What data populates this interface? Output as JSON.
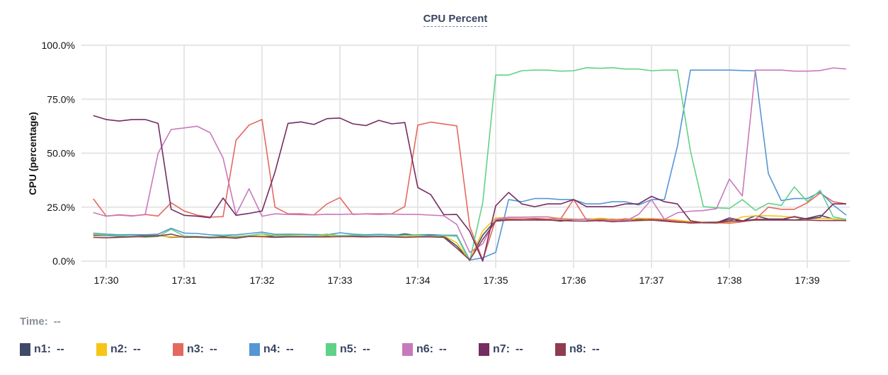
{
  "chart_data": {
    "type": "line",
    "title": "CPU Percent",
    "ylabel": "CPU (percentage)",
    "xlabel": "",
    "ylim": [
      0,
      100
    ],
    "yticks": [
      "0.0%",
      "25.0%",
      "50.0%",
      "75.0%",
      "100.0%"
    ],
    "ytick_values": [
      0,
      25,
      50,
      75,
      100
    ],
    "xticks": [
      "17:30",
      "17:31",
      "17:32",
      "17:33",
      "17:34",
      "17:35",
      "17:36",
      "17:37",
      "17:38",
      "17:39"
    ],
    "grid": true,
    "legend": "bottom",
    "x": [
      "17:29:50",
      "17:30:00",
      "17:30:10",
      "17:30:20",
      "17:30:30",
      "17:30:40",
      "17:30:50",
      "17:31:00",
      "17:31:10",
      "17:31:20",
      "17:31:30",
      "17:31:40",
      "17:31:50",
      "17:32:00",
      "17:32:10",
      "17:32:20",
      "17:32:30",
      "17:32:40",
      "17:32:50",
      "17:33:00",
      "17:33:10",
      "17:33:20",
      "17:33:30",
      "17:33:40",
      "17:33:50",
      "17:34:00",
      "17:34:10",
      "17:34:20",
      "17:34:30",
      "17:34:40",
      "17:34:50",
      "17:35:00",
      "17:35:10",
      "17:35:20",
      "17:35:30",
      "17:35:40",
      "17:35:50",
      "17:36:00",
      "17:36:10",
      "17:36:20",
      "17:36:30",
      "17:36:40",
      "17:36:50",
      "17:37:00",
      "17:37:10",
      "17:37:20",
      "17:37:30",
      "17:37:40",
      "17:37:50",
      "17:38:00",
      "17:38:10",
      "17:38:20",
      "17:38:30",
      "17:38:40",
      "17:38:50",
      "17:39:00",
      "17:39:10",
      "17:39:20",
      "17:39:30"
    ],
    "series": [
      {
        "name": "n1",
        "color": "#3f4a68",
        "values": [
          12,
          11.8,
          11.5,
          11.6,
          11.8,
          12,
          11,
          11.3,
          11,
          11,
          11.5,
          11.2,
          11.8,
          11.4,
          11.6,
          11.6,
          11.5,
          11.7,
          11.6,
          11.8,
          11.5,
          11.6,
          11.6,
          11.7,
          12.6,
          11.8,
          11.9,
          11.5,
          7,
          0.5,
          12,
          19,
          19.3,
          19.5,
          19.5,
          19.2,
          18.5,
          19.3,
          19.5,
          19.6,
          18.8,
          19.2,
          19.4,
          19.5,
          19,
          18.5,
          17.8,
          18,
          18,
          19.2,
          18.5,
          21,
          19.5,
          19.5,
          19,
          19.8,
          21.2,
          19.5,
          19.3
        ]
      },
      {
        "name": "n2",
        "color": "#f5c518",
        "values": [
          12.5,
          12,
          11.8,
          11.5,
          11.5,
          11.8,
          11.2,
          11.5,
          11,
          11.2,
          10.8,
          11.5,
          11.8,
          11.6,
          12.2,
          12,
          11.8,
          11.6,
          11.9,
          11.5,
          12,
          11.8,
          11.6,
          11.8,
          11.2,
          11.6,
          11.5,
          11.8,
          8.5,
          0.3,
          14,
          20,
          20.3,
          20.3,
          20.5,
          20.5,
          19.8,
          19.5,
          19.3,
          19.8,
          19.5,
          19.3,
          19.8,
          19.7,
          19.4,
          19,
          18.3,
          18,
          17.5,
          18,
          20.5,
          21,
          21,
          20.8,
          20.3,
          19.5,
          19.8,
          19.6,
          19.3
        ]
      },
      {
        "name": "n3",
        "color": "#e5685f",
        "values": [
          28.9,
          20.9,
          21.3,
          20.9,
          21.6,
          20.9,
          27,
          23.2,
          21.3,
          20.4,
          20.6,
          56,
          63,
          65.6,
          25,
          21.9,
          21.9,
          21.4,
          26.5,
          29.4,
          21.6,
          21.9,
          21.9,
          21.9,
          25.3,
          63,
          64.4,
          63.5,
          62.7,
          16,
          0.5,
          19.3,
          19.6,
          19.5,
          19.8,
          19.5,
          19.5,
          28.6,
          19,
          19.2,
          18.8,
          19.6,
          18.8,
          19.5,
          19.2,
          18.5,
          17.5,
          17.8,
          17.8,
          17.5,
          18.2,
          19.3,
          25,
          24,
          24,
          27,
          31.5,
          27.5,
          26.5
        ]
      },
      {
        "name": "n4",
        "color": "#5596d4",
        "values": [
          13,
          12.5,
          12.2,
          12.3,
          12.2,
          12.5,
          15.2,
          13,
          12.8,
          12.2,
          12,
          12.2,
          12.8,
          13.4,
          12.4,
          12.5,
          12.4,
          12.3,
          12.2,
          13.1,
          12.5,
          12.2,
          12.4,
          12.2,
          11.9,
          12.2,
          12.3,
          12,
          12,
          0.5,
          1.5,
          4,
          28.5,
          27.5,
          29,
          29,
          28.5,
          28.5,
          26.5,
          26.5,
          27.5,
          27.5,
          26,
          28.5,
          28.5,
          53.3,
          88.5,
          88.5,
          88.5,
          88.5,
          88.3,
          88.2,
          40.6,
          28,
          29,
          29,
          32,
          26,
          21.3
        ]
      },
      {
        "name": "n5",
        "color": "#60d287",
        "values": [
          12.8,
          12,
          11.7,
          11.6,
          11,
          11.4,
          14.8,
          11.6,
          11.4,
          11.2,
          11.8,
          11.3,
          11.8,
          12.7,
          11.6,
          11.8,
          11.5,
          11.7,
          12.5,
          11.8,
          12,
          11.8,
          11.7,
          11.6,
          11.9,
          12.1,
          11.3,
          11.8,
          11.5,
          0,
          27,
          86.2,
          86.2,
          88.2,
          88.5,
          88.5,
          88,
          88.2,
          89.6,
          89.3,
          89.6,
          89,
          89,
          88.2,
          88.5,
          88.5,
          51,
          25.2,
          24.7,
          24.4,
          28.5,
          23.5,
          26.8,
          25.8,
          34.4,
          27.6,
          32.8,
          20.5,
          19.3
        ]
      },
      {
        "name": "n6",
        "color": "#c879bb",
        "values": [
          22.5,
          20.8,
          21.5,
          21,
          21.5,
          50,
          61,
          61.7,
          62.5,
          59.5,
          47.8,
          21.6,
          33.5,
          20.8,
          21.9,
          21.6,
          21.5,
          21.4,
          21.7,
          21.6,
          21.8,
          21.8,
          21.6,
          21.8,
          21.6,
          21.6,
          21.3,
          21,
          17,
          4,
          8,
          19.3,
          20.3,
          20.3,
          20.5,
          20.5,
          19.3,
          19.3,
          19.3,
          18.5,
          19.3,
          18.5,
          21.6,
          28.5,
          19.3,
          22.4,
          23.1,
          23.4,
          24.3,
          38,
          30.2,
          88.5,
          88.5,
          88.5,
          88,
          88,
          88.3,
          89.5,
          89
        ]
      },
      {
        "name": "n7",
        "color": "#752c61",
        "values": [
          67.4,
          65.6,
          64.9,
          65.6,
          65.6,
          63.8,
          24,
          21.2,
          20.8,
          20.1,
          29.2,
          21.2,
          22.1,
          23.2,
          41.2,
          63.8,
          64.5,
          63.3,
          66,
          66.3,
          63.6,
          62.8,
          65.2,
          63.6,
          64.2,
          34.1,
          30.8,
          21.5,
          21.6,
          13.8,
          0,
          25.6,
          31.8,
          26.5,
          25.2,
          26.5,
          26.5,
          28.5,
          25.2,
          25.2,
          25.2,
          26.5,
          26.5,
          30,
          27.5,
          26.5,
          18.7,
          17.7,
          17.7,
          20,
          18.7,
          19.3,
          19.3,
          19.3,
          20.6,
          19.5,
          20.3,
          26.5,
          26.5
        ]
      },
      {
        "name": "n8",
        "color": "#8e3c50",
        "values": [
          11,
          10.8,
          11,
          11.2,
          11.4,
          11.6,
          12.5,
          11,
          11.2,
          10.8,
          11,
          10.6,
          11.4,
          11.3,
          11,
          11.2,
          11.2,
          11.2,
          11.2,
          11.3,
          11.3,
          11.2,
          11.3,
          11.2,
          11,
          11.2,
          11.2,
          11,
          6,
          0.5,
          10,
          18.5,
          19,
          19,
          19,
          19,
          18.8,
          18.6,
          18.5,
          18.8,
          18.2,
          18.5,
          18.8,
          19,
          18.5,
          18,
          17.8,
          17.8,
          17.8,
          18.5,
          18.5,
          19,
          19,
          19,
          19,
          19,
          18.8,
          18.8,
          18.8
        ]
      }
    ]
  },
  "hover": {
    "time_label": "Time:",
    "time_value": "--"
  },
  "legend_items": [
    {
      "label": "n1:",
      "value": "--"
    },
    {
      "label": "n2:",
      "value": "--"
    },
    {
      "label": "n3:",
      "value": "--"
    },
    {
      "label": "n4:",
      "value": "--"
    },
    {
      "label": "n5:",
      "value": "--"
    },
    {
      "label": "n6:",
      "value": "--"
    },
    {
      "label": "n7:",
      "value": "--"
    },
    {
      "label": "n8:",
      "value": "--"
    }
  ]
}
